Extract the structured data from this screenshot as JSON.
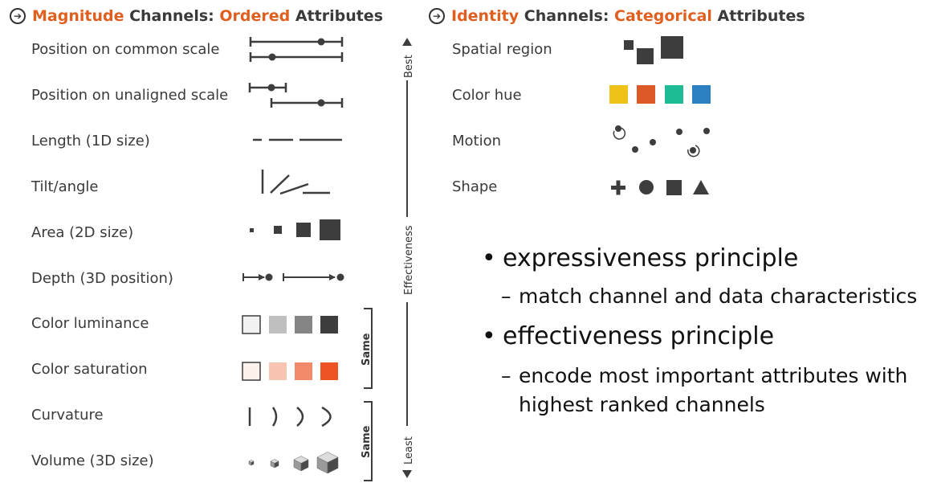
{
  "magnitude_header": {
    "part1": "Magnitude",
    "part2": " Channels: ",
    "part3": "Ordered",
    "part4": " Attributes",
    "arrow_icon": "circled-right-arrow-icon"
  },
  "identity_header": {
    "part1": "Identity",
    "part2": " Channels: ",
    "part3": "Categorical",
    "part4": " Attributes",
    "arrow_icon": "circled-right-arrow-icon"
  },
  "magnitude_channels": [
    "Position on common scale",
    "Position on unaligned scale",
    "Length (1D size)",
    "Tilt/angle",
    "Area (2D size)",
    "Depth (3D position)",
    "Color luminance",
    "Color saturation",
    "Curvature",
    "Volume (3D size)"
  ],
  "identity_channels": [
    "Spatial region",
    "Color hue",
    "Motion",
    "Shape"
  ],
  "effectiveness_axis": {
    "top_label": "Best",
    "middle_label": "Effectiveness",
    "bottom_label": "Least",
    "same_label_1": "Same",
    "same_label_2": "Same"
  },
  "principles": {
    "p1_title": "expressiveness principle",
    "p1_detail": "match channel and data characteristics",
    "p2_title": "effectiveness principle",
    "p2_detail_line1": "encode most important attributes with",
    "p2_detail_line2": "highest ranked channels",
    "bullet_symbol": "•",
    "dash_symbol": "–"
  },
  "colors": {
    "accent": "#e05f1e",
    "text": "#3a3a3a",
    "mark_dark": "#3d3d3d",
    "hue_yellow": "#efc21a",
    "hue_orange": "#dd5a28",
    "hue_teal": "#1fbb95",
    "hue_blue": "#2a80c0",
    "lum_1": "#f2f2f2",
    "lum_2": "#bfbfbf",
    "lum_3": "#858585",
    "lum_4": "#3d3d3d",
    "sat_1": "#fdf1ec",
    "sat_2": "#f7c4b1",
    "sat_3": "#f28a6a",
    "sat_4": "#ed5325"
  }
}
